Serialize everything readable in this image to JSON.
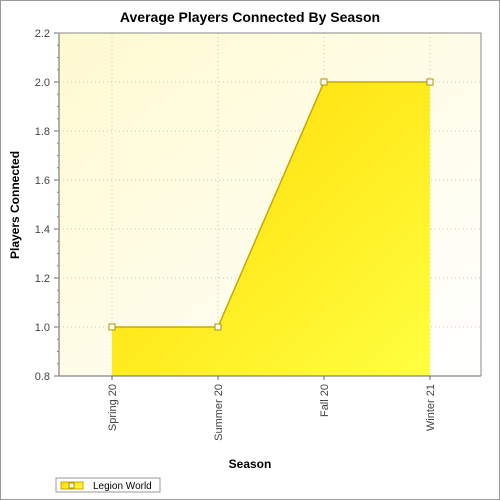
{
  "chart_data": {
    "type": "area",
    "title": "Average Players Connected By Season",
    "xlabel": "Season",
    "ylabel": "Players Connected",
    "categories": [
      "Spring 20",
      "Summer 20",
      "Fall 20",
      "Winter 21"
    ],
    "series": [
      {
        "name": "Legion World",
        "values": [
          1.0,
          1.0,
          2.0,
          2.0
        ]
      }
    ],
    "ylim": [
      0.8,
      2.2
    ],
    "yticks": [
      "0.8",
      "1.0",
      "1.2",
      "1.4",
      "1.6",
      "1.8",
      "2.0",
      "2.2"
    ],
    "grid": true,
    "legend": "bottom-left",
    "colors": {
      "area_light": "#fff7a0",
      "area_dark": "#f5d800",
      "line": "#c8a800",
      "plot_bg": "#fffde4",
      "grid": "#c8c8c8"
    }
  }
}
